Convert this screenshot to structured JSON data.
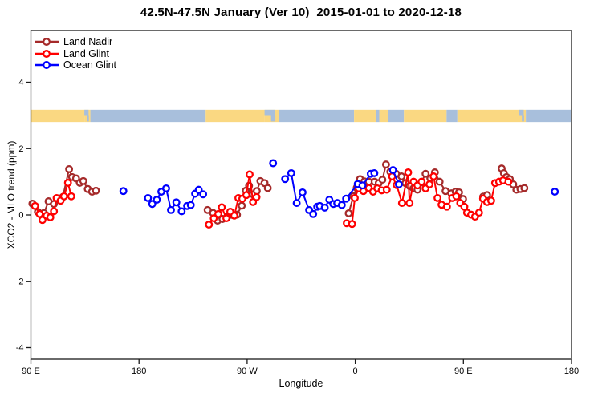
{
  "title": "42.5N-47.5N January (Ver 10)  2015-01-01 to 2020-12-18",
  "colors": {
    "land_nadir": "#A52A2A",
    "land_glint": "#FF0000",
    "ocean_glint": "#0000FF",
    "map_land": "#FAD882",
    "map_ocean": "#A8BFDC",
    "axis": "#1a1a1a"
  },
  "legend": {
    "items": [
      {
        "label": "Land Nadir",
        "color": "#A52A2A"
      },
      {
        "label": "Land Glint",
        "color": "#FF0000"
      },
      {
        "label": "Ocean Glint",
        "color": "#0000FF"
      }
    ]
  },
  "chart_data": {
    "type": "line",
    "title": "42.5N-47.5N January (Ver 10)  2015-01-01 to 2020-12-18",
    "xlabel": "Longitude",
    "ylabel": "XCO2 - MLO trend (ppm)",
    "x_axis": {
      "note": "longitude axis increases eastward from 90E, wrapping through 180, 90W, 0, 90E to 180",
      "range": [
        90,
        540
      ],
      "ticks": [
        {
          "v": 90,
          "label": "90 E"
        },
        {
          "v": 180,
          "label": "180"
        },
        {
          "v": 270,
          "label": "90 W"
        },
        {
          "v": 360,
          "label": "0"
        },
        {
          "v": 450,
          "label": "90 E"
        },
        {
          "v": 540,
          "label": "180"
        }
      ]
    },
    "y_axis": {
      "range": [
        -4.35,
        5.56
      ],
      "ticks": [
        {
          "v": -4,
          "label": "-4"
        },
        {
          "v": -2,
          "label": "-2"
        },
        {
          "v": 0,
          "label": "0"
        },
        {
          "v": 2,
          "label": "2"
        },
        {
          "v": 4,
          "label": "4"
        }
      ]
    },
    "legend_position": "top-left",
    "grid": false,
    "map_strip": {
      "ppm_top": 3.17,
      "ppm_bottom": 2.8,
      "land_color": "#FAD882",
      "ocean_color": "#A8BFDC",
      "segments": [
        {
          "from": 90,
          "to": 134.5,
          "type": "land"
        },
        {
          "from": 134.5,
          "to": 139.5,
          "type": "coast"
        },
        {
          "from": 139.5,
          "to": 235.5,
          "type": "ocean"
        },
        {
          "from": 235.5,
          "to": 284.5,
          "type": "land"
        },
        {
          "from": 284.5,
          "to": 296.5,
          "type": "coast"
        },
        {
          "from": 296.5,
          "to": 359.0,
          "type": "ocean"
        },
        {
          "from": 359.0,
          "to": 377.0,
          "type": "land"
        },
        {
          "from": 377.0,
          "to": 380.0,
          "type": "ocean"
        },
        {
          "from": 380.0,
          "to": 387.5,
          "type": "land"
        },
        {
          "from": 387.5,
          "to": 400.5,
          "type": "ocean"
        },
        {
          "from": 400.5,
          "to": 436.0,
          "type": "land"
        },
        {
          "from": 436.0,
          "to": 445.0,
          "type": "ocean"
        },
        {
          "from": 445.0,
          "to": 496.0,
          "type": "land"
        },
        {
          "from": 496.0,
          "to": 502.0,
          "type": "coast"
        },
        {
          "from": 502.0,
          "to": 540.0,
          "type": "ocean"
        }
      ]
    },
    "series": [
      {
        "name": "Land Nadir",
        "color": "#A52A2A",
        "points": [
          [
            91.3,
            0.34
          ],
          [
            95.8,
            0.09
          ],
          [
            100.9,
            0.06
          ],
          [
            104.7,
            0.41
          ],
          [
            109.2,
            0.33
          ],
          [
            112.9,
            0.49
          ],
          [
            116.5,
            0.54
          ],
          [
            121.8,
            1.38
          ],
          [
            124.3,
            1.14
          ],
          [
            127.6,
            1.1
          ],
          [
            130.7,
            0.97
          ],
          [
            133.6,
            1.02
          ],
          [
            137.4,
            0.78
          ],
          [
            140.9,
            0.7
          ],
          [
            144.1,
            0.73
          ],
          null,
          [
            237.1,
            0.15
          ],
          [
            241.6,
            0.06
          ],
          [
            245.4,
            -0.17
          ],
          [
            249.5,
            -0.12
          ],
          [
            253.5,
            -0.05
          ],
          [
            258.0,
            0.0
          ],
          [
            261.6,
            0.01
          ],
          [
            265.5,
            0.28
          ],
          [
            268.9,
            0.73
          ],
          [
            271.6,
            0.88
          ],
          [
            274.8,
            0.62
          ],
          [
            278.0,
            0.72
          ],
          [
            281.0,
            1.02
          ],
          [
            284.5,
            0.96
          ],
          [
            287.2,
            0.81
          ],
          null,
          [
            354.5,
            0.05
          ],
          [
            358.4,
            0.56
          ],
          [
            361.2,
            0.82
          ],
          [
            364.0,
            1.08
          ],
          [
            367.6,
            1.01
          ],
          [
            371.3,
            1.0
          ],
          [
            376.2,
            1.0
          ],
          [
            379.6,
            0.96
          ],
          [
            382.6,
            1.06
          ],
          [
            385.6,
            1.52
          ],
          [
            389.2,
            1.3
          ],
          [
            394.0,
            1.24
          ],
          [
            398.5,
            1.16
          ],
          [
            401.8,
            0.96
          ],
          [
            405.3,
            0.87
          ],
          [
            408.5,
            0.8
          ],
          [
            411.8,
            0.76
          ],
          [
            415.0,
            0.98
          ],
          [
            418.5,
            1.24
          ],
          [
            422.5,
            1.1
          ],
          [
            426.3,
            1.28
          ],
          [
            430.2,
            1.0
          ],
          [
            435.2,
            0.72
          ],
          [
            440.0,
            0.65
          ],
          [
            443.5,
            0.7
          ],
          [
            446.4,
            0.68
          ],
          [
            449.7,
            0.48
          ],
          null,
          [
            466.5,
            0.55
          ],
          [
            469.7,
            0.6
          ],
          null,
          [
            481.9,
            1.4
          ],
          [
            483.7,
            1.26
          ],
          [
            485.9,
            1.14
          ],
          [
            488.6,
            1.08
          ],
          [
            491.5,
            0.92
          ],
          [
            494.1,
            0.76
          ],
          [
            497.5,
            0.78
          ],
          [
            500.8,
            0.81
          ]
        ]
      },
      {
        "name": "Land Glint",
        "color": "#FF0000",
        "points": [
          [
            93.5,
            0.27
          ],
          [
            97.3,
            0.03
          ],
          [
            99.6,
            -0.15
          ],
          [
            103.1,
            -0.02
          ],
          [
            106.2,
            -0.07
          ],
          [
            109.2,
            0.11
          ],
          [
            111.4,
            0.51
          ],
          [
            114.7,
            0.43
          ],
          [
            117.6,
            0.56
          ],
          [
            120.9,
            0.97
          ],
          [
            123.6,
            0.56
          ],
          null,
          [
            238.2,
            -0.29
          ],
          [
            242.2,
            -0.1
          ],
          [
            246.0,
            0.03
          ],
          [
            248.9,
            0.23
          ],
          [
            252.7,
            -0.1
          ],
          [
            256.0,
            0.1
          ],
          [
            259.3,
            -0.02
          ],
          [
            262.7,
            0.51
          ],
          [
            266.0,
            0.49
          ],
          [
            269.3,
            0.6
          ],
          [
            272.1,
            1.22
          ],
          [
            274.9,
            0.39
          ],
          [
            277.8,
            0.54
          ],
          null,
          [
            352.9,
            -0.25
          ],
          [
            357.3,
            -0.27
          ],
          [
            359.6,
            0.51
          ],
          [
            362.9,
            0.8
          ],
          [
            366.8,
            0.72
          ],
          [
            371.3,
            0.81
          ],
          [
            374.8,
            0.7
          ],
          [
            378.4,
            0.8
          ],
          [
            382.0,
            0.74
          ],
          [
            386.2,
            0.76
          ],
          [
            390.7,
            1.16
          ],
          [
            394.5,
            0.9
          ],
          [
            398.9,
            0.36
          ],
          [
            404.0,
            1.28
          ],
          [
            405.2,
            0.36
          ],
          [
            408.5,
            1.0
          ],
          [
            411.8,
            0.89
          ],
          [
            415.2,
            1.0
          ],
          [
            418.5,
            0.8
          ],
          [
            421.8,
            0.92
          ],
          [
            425.2,
            1.16
          ],
          [
            428.5,
            0.51
          ],
          [
            431.8,
            0.31
          ],
          [
            436.3,
            0.25
          ],
          [
            440.7,
            0.51
          ],
          [
            444.1,
            0.56
          ],
          [
            447.4,
            0.36
          ],
          [
            450.8,
            0.25
          ],
          [
            453.0,
            0.07
          ],
          [
            456.4,
            0.01
          ],
          [
            459.7,
            -0.05
          ],
          [
            463.0,
            0.07
          ],
          [
            466.4,
            0.49
          ],
          [
            469.7,
            0.39
          ],
          [
            473.1,
            0.43
          ],
          [
            476.4,
            0.96
          ],
          [
            479.7,
            1.0
          ],
          [
            483.1,
            1.04
          ],
          [
            487.5,
            1.0
          ]
        ]
      },
      {
        "name": "Ocean Glint",
        "color": "#0000FF",
        "points": [
          [
            167.0,
            0.72
          ],
          null,
          [
            187.5,
            0.51
          ],
          [
            191.0,
            0.33
          ],
          [
            194.8,
            0.46
          ],
          [
            198.6,
            0.7
          ],
          [
            202.6,
            0.8
          ],
          [
            206.6,
            0.15
          ],
          [
            211.1,
            0.38
          ],
          [
            215.5,
            0.11
          ],
          [
            220.0,
            0.27
          ],
          [
            223.1,
            0.3
          ],
          [
            226.7,
            0.64
          ],
          [
            229.7,
            0.76
          ],
          [
            233.4,
            0.62
          ],
          null,
          [
            291.6,
            1.56
          ],
          null,
          [
            301.6,
            1.08
          ],
          [
            306.7,
            1.26
          ],
          [
            311.2,
            0.36
          ],
          [
            316.1,
            0.68
          ],
          [
            321.6,
            0.15
          ],
          [
            325.0,
            0.03
          ],
          [
            328.3,
            0.25
          ],
          [
            330.5,
            0.27
          ],
          [
            334.6,
            0.22
          ],
          [
            338.4,
            0.46
          ],
          [
            341.7,
            0.33
          ],
          [
            345.0,
            0.36
          ],
          [
            348.8,
            0.3
          ],
          [
            352.4,
            0.49
          ],
          [
            362.0,
            0.93
          ],
          [
            366.0,
            0.89
          ],
          [
            372.9,
            1.24
          ],
          [
            375.9,
            1.26
          ],
          null,
          [
            391.4,
            1.35
          ],
          [
            396.3,
            0.92
          ],
          null,
          [
            526.1,
            0.7
          ]
        ]
      }
    ]
  }
}
